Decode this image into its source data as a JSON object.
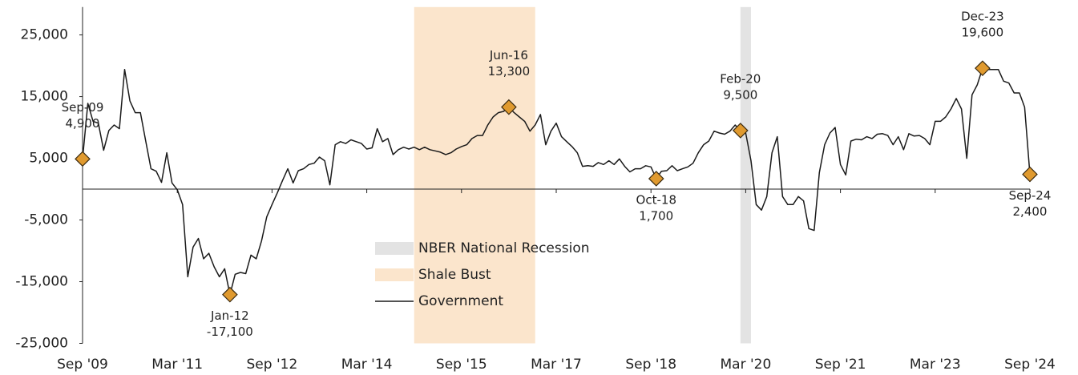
{
  "chart_data": {
    "type": "line",
    "categories": [
      "Sep '09",
      null,
      null,
      null,
      null,
      null,
      null,
      null,
      null,
      null,
      null,
      null,
      null,
      null,
      null,
      null,
      null,
      null,
      "Mar '11",
      null,
      null,
      null,
      null,
      null,
      null,
      null,
      null,
      null,
      null,
      null,
      null,
      null,
      null,
      null,
      null,
      null,
      "Sep '12",
      null,
      null,
      null,
      null,
      null,
      null,
      null,
      null,
      null,
      null,
      null,
      null,
      null,
      null,
      null,
      null,
      null,
      "Mar '14",
      null,
      null,
      null,
      null,
      null,
      null,
      null,
      null,
      null,
      null,
      null,
      null,
      null,
      null,
      null,
      null,
      null,
      "Sep '15",
      null,
      null,
      null,
      null,
      null,
      null,
      null,
      null,
      null,
      null,
      null,
      null,
      null,
      null,
      null,
      null,
      null,
      "Mar '17",
      null,
      null,
      null,
      null,
      null,
      null,
      null,
      null,
      null,
      null,
      null,
      null,
      null,
      null,
      null,
      null,
      null,
      "Sep '18",
      null,
      null,
      null,
      null,
      null,
      null,
      null,
      null,
      null,
      null,
      null,
      null,
      null,
      null,
      null,
      null,
      null,
      "Mar '20",
      null,
      null,
      null,
      null,
      null,
      null,
      null,
      null,
      null,
      null,
      null,
      null,
      null,
      null,
      null,
      null,
      null,
      "Sep '21",
      null,
      null,
      null,
      null,
      null,
      null,
      null,
      null,
      null,
      null,
      null,
      null,
      null,
      null,
      null,
      null,
      null,
      "Mar '23",
      null,
      null,
      null,
      null,
      null,
      null,
      null,
      null,
      null,
      null,
      null,
      null,
      null,
      null,
      null,
      null,
      null,
      "Sep '24"
    ],
    "series": [
      {
        "name": "Government",
        "color": "#1a1a1a",
        "values": [
          4900,
          13900,
          11000,
          10700,
          6300,
          9500,
          10400,
          9800,
          19400,
          14300,
          12400,
          12400,
          7800,
          3300,
          2900,
          1100,
          5900,
          1000,
          -100,
          -2500,
          -14200,
          -9400,
          -8000,
          -11300,
          -10400,
          -12600,
          -14200,
          -12900,
          -17100,
          -13800,
          -13500,
          -13700,
          -10700,
          -11300,
          -8400,
          -4500,
          -2500,
          -600,
          1400,
          3300,
          1000,
          3000,
          3300,
          4000,
          4200,
          5200,
          4600,
          700,
          7200,
          7700,
          7400,
          8000,
          7700,
          7400,
          6500,
          6700,
          9800,
          7700,
          8200,
          5600,
          6400,
          6800,
          6500,
          6800,
          6400,
          6800,
          6400,
          6200,
          6000,
          5600,
          5900,
          6500,
          6900,
          7200,
          8200,
          8700,
          8700,
          10400,
          11700,
          12400,
          12600,
          13300,
          12400,
          11700,
          11000,
          9400,
          10400,
          12100,
          7200,
          9400,
          10700,
          8500,
          7700,
          6900,
          5900,
          3700,
          3800,
          3700,
          4300,
          4000,
          4600,
          4000,
          4900,
          3700,
          2800,
          3300,
          3300,
          3800,
          3600,
          1700,
          2900,
          3000,
          3800,
          3000,
          3300,
          3600,
          4200,
          5900,
          7200,
          7800,
          9400,
          9100,
          8900,
          9400,
          10400,
          9500,
          9100,
          4600,
          -2500,
          -3400,
          -1200,
          5900,
          8500,
          -1200,
          -2500,
          -2500,
          -1200,
          -1900,
          -6400,
          -6700,
          2700,
          7200,
          9100,
          10000,
          4000,
          2300,
          7800,
          8100,
          8000,
          8500,
          8200,
          8900,
          9000,
          8700,
          7200,
          8500,
          6400,
          9000,
          8600,
          8700,
          8200,
          7200,
          11000,
          11000,
          11700,
          13000,
          14700,
          13000,
          5000,
          15300,
          16900,
          19600,
          19400,
          19400,
          19400,
          17500,
          17200,
          15600,
          15600,
          13300,
          2400
        ]
      }
    ],
    "spans": [
      {
        "name": "NBER National Recession",
        "color": "#e3e3e3",
        "start": 125,
        "end": 127
      },
      {
        "name": "Shale Bust",
        "color": "#fbe5cc",
        "start": 63,
        "end": 86
      }
    ],
    "annotations": [
      {
        "x": 0,
        "date": "Sep-09",
        "value": 4900,
        "value_label": "4,900"
      },
      {
        "x": 28,
        "date": "Jan-12",
        "value": -17100,
        "value_label": "-17,100"
      },
      {
        "x": 81,
        "date": "Jun-16",
        "value": 13300,
        "value_label": "13,300"
      },
      {
        "x": 109,
        "date": "Oct-18",
        "value": 1700,
        "value_label": "1,700"
      },
      {
        "x": 125,
        "date": "Feb-20",
        "value": 9500,
        "value_label": "9,500"
      },
      {
        "x": 171,
        "date": "Dec-23",
        "value": 19600,
        "value_label": "19,600"
      },
      {
        "x": 180,
        "date": "Sep-24",
        "value": 2400,
        "value_label": "2,400"
      }
    ],
    "marker_color": "#e09a2f",
    "ylim": [
      -25000,
      29000
    ],
    "yticks": [
      {
        "value": 25000,
        "label": "25,000"
      },
      {
        "value": 15000,
        "label": "15,000"
      },
      {
        "value": 5000,
        "label": "5,000"
      },
      {
        "value": -5000,
        "label": "-5,000"
      },
      {
        "value": -15000,
        "label": "-15,000"
      },
      {
        "value": -25000,
        "label": "-25,000"
      }
    ],
    "grid": false
  }
}
